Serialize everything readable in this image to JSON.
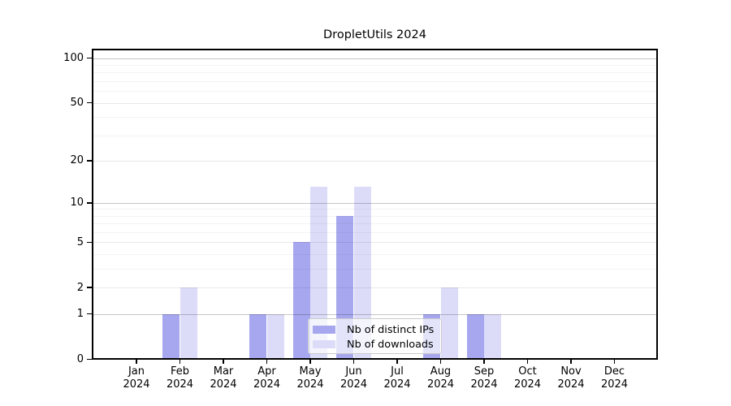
{
  "chart_data": {
    "type": "bar",
    "title": "DropletUtils 2024",
    "year_label": "2024",
    "categories": [
      "Jan",
      "Feb",
      "Mar",
      "Apr",
      "May",
      "Jun",
      "Jul",
      "Aug",
      "Sep",
      "Oct",
      "Nov",
      "Dec"
    ],
    "series": [
      {
        "name": "Nb of distinct IPs",
        "color": "#a7a7f0",
        "values": [
          0,
          1,
          0,
          1,
          5,
          8,
          0,
          1,
          1,
          0,
          0,
          0
        ]
      },
      {
        "name": "Nb of downloads",
        "color": "#dcdcf8",
        "values": [
          0,
          2,
          0,
          1,
          13,
          13,
          0,
          2,
          1,
          0,
          0,
          0
        ]
      }
    ],
    "y_axis": {
      "scale": "log10(value+1)",
      "tick_values": [
        0,
        1,
        2,
        5,
        10,
        20,
        50,
        100
      ],
      "minor_gridline_values": [
        3,
        4,
        6,
        7,
        8,
        9,
        30,
        40,
        60,
        70,
        80,
        90
      ],
      "top_value": 116
    },
    "x_axis": {
      "grid": false
    },
    "legend": {
      "position": "lower-center-inside"
    },
    "colors": {
      "background": "#ffffff",
      "spine": "#000000",
      "text": "#000000",
      "grid_power10": "#c8c8c8",
      "grid_major": "#e9e9e9",
      "grid_minor": "#f3f3f3"
    }
  }
}
